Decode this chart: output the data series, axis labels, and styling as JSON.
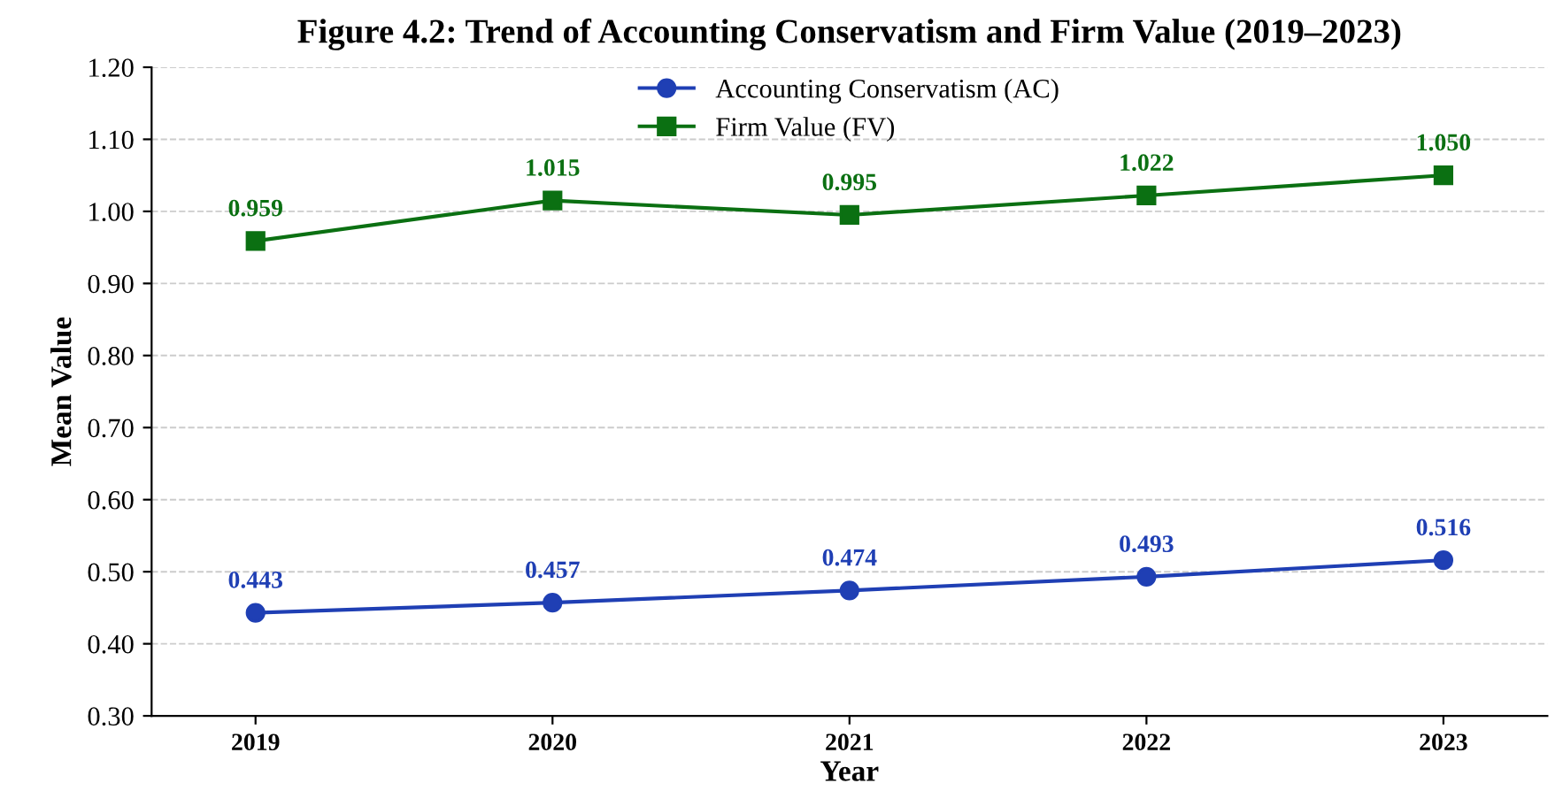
{
  "chart_data": {
    "type": "line",
    "title": "Figure 4.2: Trend of Accounting Conservatism and Firm Value (2019–2023)",
    "xlabel": "Year",
    "ylabel": "Mean Value",
    "categories": [
      "2019",
      "2020",
      "2021",
      "2022",
      "2023"
    ],
    "series": [
      {
        "name": "Accounting Conservatism (AC)",
        "color": "#1f3fb4",
        "values": [
          0.443,
          0.457,
          0.474,
          0.493,
          0.516
        ],
        "value_labels": [
          "0.443",
          "0.457",
          "0.474",
          "0.493",
          "0.516"
        ],
        "marker": "circle"
      },
      {
        "name": "Firm Value (FV)",
        "color": "#0b7012",
        "values": [
          0.959,
          1.015,
          0.995,
          1.022,
          1.05
        ],
        "value_labels": [
          "0.959",
          "1.015",
          "0.995",
          "1.022",
          "1.050"
        ],
        "marker": "square"
      }
    ],
    "ylim": [
      0.3,
      1.2
    ],
    "yticks": [
      {
        "value": 0.3,
        "label": "0.30"
      },
      {
        "value": 0.4,
        "label": "0.40"
      },
      {
        "value": 0.5,
        "label": "0.50"
      },
      {
        "value": 0.6,
        "label": "0.60"
      },
      {
        "value": 0.7,
        "label": "0.70"
      },
      {
        "value": 0.8,
        "label": "0.80"
      },
      {
        "value": 0.9,
        "label": "0.90"
      },
      {
        "value": 1.0,
        "label": "1.00"
      },
      {
        "value": 1.1,
        "label": "1.10"
      },
      {
        "value": 1.2,
        "label": "1.20"
      }
    ],
    "grid": "y",
    "legend": "top",
    "line_style": "solid"
  }
}
